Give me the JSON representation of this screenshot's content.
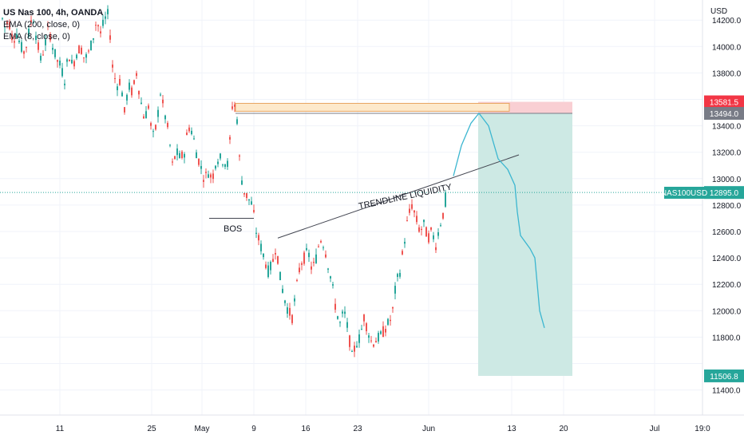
{
  "header": {
    "symbol_line": "US Nas 100, 4h, OANDA",
    "ema_long": "EMA (200, close, 0)",
    "ema_short": "EMA (8, close, 0)"
  },
  "price_axis": {
    "currency": "USD",
    "ticks": [
      "14200.0",
      "14000.0",
      "13800.0",
      "13400.0",
      "13200.0",
      "13000.0",
      "12800.0",
      "12600.0",
      "12400.0",
      "12200.0",
      "12000.0",
      "11800.0",
      "11400.0"
    ]
  },
  "price_labels": [
    {
      "text": "13581.5",
      "color": "#f23645"
    },
    {
      "text": "13494.0",
      "color": "#787b86"
    },
    {
      "text": "12895.0",
      "color": "#26a69a"
    },
    {
      "text": "11506.8",
      "color": "#26a69a"
    }
  ],
  "symbol_tag": "NAS100USD",
  "time_axis": {
    "ticks": [
      "11",
      "25",
      "May",
      "9",
      "16",
      "23",
      "Jun",
      "13",
      "20",
      "Jul",
      "19:0"
    ]
  },
  "annotations": {
    "bos": "BOS",
    "trendline": "TRENDLINE LIQUIDITY"
  },
  "colors": {
    "up": "#26a69a",
    "down": "#ef5350",
    "target_zone": "#cde9e4",
    "stop_zone": "#f9cfd3",
    "supply_zone": "#fde9cb",
    "projection": "#3bb6d0"
  },
  "chart_data": {
    "type": "candlestick",
    "symbol": "US Nas 100",
    "interval": "4h",
    "source": "OANDA",
    "ylim": [
      11350,
      14300
    ],
    "last_price": 12895.0,
    "position": {
      "entry": 13494.0,
      "stop": 13581.5,
      "target": 11506.8
    },
    "price_path": [
      [
        0,
        14250
      ],
      [
        5,
        14150
      ],
      [
        10,
        14200
      ],
      [
        15,
        14050
      ],
      [
        20,
        14100
      ],
      [
        25,
        14000
      ],
      [
        30,
        13950
      ],
      [
        35,
        14100
      ],
      [
        40,
        14250
      ],
      [
        45,
        14050
      ],
      [
        50,
        13900
      ],
      [
        55,
        14000
      ],
      [
        60,
        14150
      ],
      [
        65,
        14000
      ],
      [
        70,
        13900
      ],
      [
        75,
        13850
      ],
      [
        80,
        13750
      ],
      [
        85,
        13950
      ],
      [
        90,
        13850
      ],
      [
        95,
        13950
      ],
      [
        100,
        14000
      ],
      [
        105,
        13900
      ],
      [
        110,
        13950
      ],
      [
        115,
        14050
      ],
      [
        120,
        14200
      ],
      [
        125,
        14100
      ],
      [
        130,
        14200
      ],
      [
        135,
        14250
      ],
      [
        140,
        13850
      ],
      [
        145,
        13700
      ],
      [
        150,
        13750
      ],
      [
        155,
        13500
      ],
      [
        160,
        13700
      ],
      [
        165,
        13650
      ],
      [
        170,
        13800
      ],
      [
        175,
        13600
      ],
      [
        180,
        13450
      ],
      [
        185,
        13550
      ],
      [
        190,
        13300
      ],
      [
        195,
        13400
      ],
      [
        200,
        13650
      ],
      [
        205,
        13500
      ],
      [
        210,
        13350
      ],
      [
        215,
        13100
      ],
      [
        220,
        13200
      ],
      [
        225,
        13150
      ],
      [
        230,
        13200
      ],
      [
        235,
        13400
      ],
      [
        240,
        13350
      ],
      [
        245,
        13200
      ],
      [
        250,
        13100
      ],
      [
        255,
        13000
      ],
      [
        260,
        13050
      ],
      [
        265,
        13000
      ],
      [
        270,
        13150
      ],
      [
        275,
        13150
      ],
      [
        280,
        13130
      ],
      [
        285,
        13100
      ],
      [
        290,
        13550
      ],
      [
        295,
        13550
      ],
      [
        300,
        13050
      ],
      [
        305,
        12900
      ],
      [
        310,
        12850
      ],
      [
        315,
        12800
      ],
      [
        320,
        12600
      ],
      [
        325,
        12500
      ],
      [
        330,
        12400
      ],
      [
        335,
        12300
      ],
      [
        340,
        12350
      ],
      [
        345,
        12500
      ],
      [
        350,
        12250
      ],
      [
        355,
        12100
      ],
      [
        360,
        12000
      ],
      [
        365,
        11950
      ],
      [
        370,
        12150
      ],
      [
        375,
        12350
      ],
      [
        380,
        12400
      ],
      [
        385,
        12450
      ],
      [
        390,
        12300
      ],
      [
        395,
        12400
      ],
      [
        400,
        12550
      ],
      [
        405,
        12500
      ],
      [
        410,
        12350
      ],
      [
        415,
        12200
      ],
      [
        420,
        12000
      ],
      [
        425,
        11900
      ],
      [
        430,
        12000
      ],
      [
        435,
        11850
      ],
      [
        440,
        11650
      ],
      [
        445,
        11750
      ],
      [
        450,
        11800
      ],
      [
        455,
        11950
      ],
      [
        460,
        11850
      ],
      [
        465,
        11750
      ],
      [
        470,
        11780
      ],
      [
        475,
        11800
      ],
      [
        480,
        11850
      ],
      [
        485,
        11900
      ],
      [
        490,
        11950
      ],
      [
        495,
        12200
      ],
      [
        500,
        12300
      ],
      [
        505,
        12500
      ],
      [
        510,
        12700
      ],
      [
        515,
        12800
      ],
      [
        520,
        12700
      ],
      [
        525,
        12600
      ],
      [
        530,
        12650
      ],
      [
        535,
        12550
      ],
      [
        540,
        12600
      ],
      [
        545,
        12500
      ],
      [
        550,
        12650
      ],
      [
        555,
        12750
      ],
      [
        560,
        12895
      ]
    ],
    "trendline": [
      [
        348,
        12550
      ],
      [
        650,
        13180
      ]
    ],
    "bos_line": {
      "x": [
        262,
        318
      ],
      "price": 12700
    },
    "supply_zone": {
      "x": [
        295,
        638
      ],
      "price": [
        13510,
        13570
      ]
    },
    "projection": [
      [
        568,
        13020
      ],
      [
        578,
        13250
      ],
      [
        590,
        13420
      ],
      [
        600,
        13495
      ],
      [
        612,
        13400
      ],
      [
        624,
        13150
      ],
      [
        636,
        13070
      ],
      [
        645,
        12950
      ],
      [
        648,
        12750
      ],
      [
        652,
        12570
      ],
      [
        664,
        12470
      ],
      [
        670,
        12400
      ],
      [
        673,
        12200
      ],
      [
        676,
        12000
      ],
      [
        682,
        11870
      ]
    ],
    "target_box": {
      "x": [
        599,
        717
      ],
      "price": [
        11506.8,
        13494
      ]
    },
    "stop_box": {
      "x": [
        599,
        717
      ],
      "price": [
        13494,
        13581.5
      ]
    }
  }
}
